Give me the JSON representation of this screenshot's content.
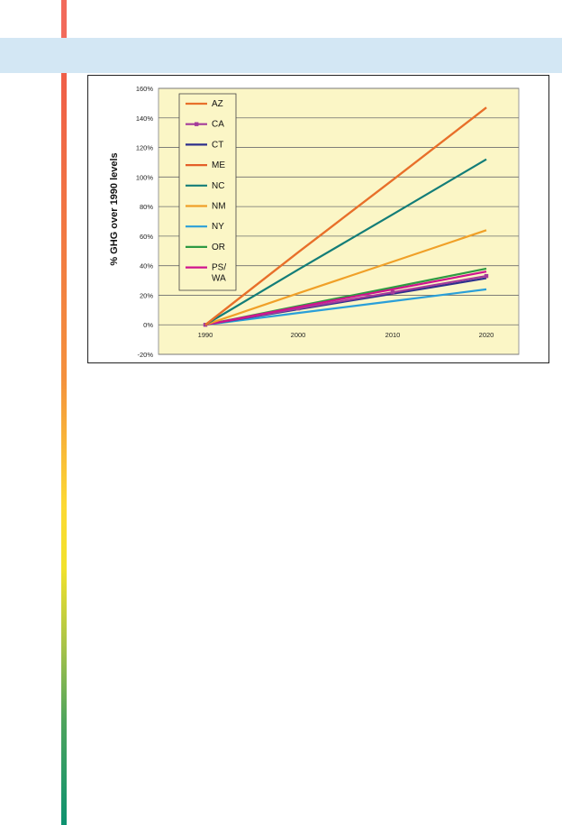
{
  "chart_data": {
    "type": "line",
    "categories": [
      "1990",
      "2000",
      "2010",
      "2020"
    ],
    "ylabel": "% GHG over 1990 levels",
    "xlabel": "",
    "ylim": [
      -20,
      160
    ],
    "yticks": [
      "-20%",
      "0%",
      "20%",
      "40%",
      "60%",
      "80%",
      "100%",
      "120%",
      "140%",
      "160%"
    ],
    "ytick_values": [
      -20,
      0,
      20,
      40,
      60,
      80,
      100,
      120,
      140,
      160
    ],
    "grid": true,
    "legend_position": "top-left",
    "plot_background": "#fbf6c6",
    "series": [
      {
        "name": "AZ",
        "color": "#e8702a",
        "values": [
          0,
          49,
          98,
          147
        ]
      },
      {
        "name": "CA",
        "color": "#a43b9a",
        "marker": "square",
        "values": [
          0,
          11,
          22,
          33
        ]
      },
      {
        "name": "CT",
        "color": "#2d2f8c",
        "values": [
          0,
          10.5,
          21,
          31.5
        ]
      },
      {
        "name": "ME",
        "color": "#e45f28",
        "values": [
          0,
          49,
          98,
          147
        ]
      },
      {
        "name": "NC",
        "color": "#137d78",
        "values": [
          0,
          37.3,
          74.7,
          112
        ]
      },
      {
        "name": "NM",
        "color": "#f0a028",
        "values": [
          0,
          21.3,
          42.7,
          64
        ]
      },
      {
        "name": "NY",
        "color": "#2a9fd8",
        "values": [
          0,
          8,
          16,
          24
        ]
      },
      {
        "name": "OR",
        "color": "#2e9a42",
        "values": [
          0,
          12.7,
          25.3,
          38
        ]
      },
      {
        "name": "PS/\nWA",
        "color": "#d0138e",
        "values": [
          0,
          12,
          24,
          36
        ]
      }
    ]
  }
}
